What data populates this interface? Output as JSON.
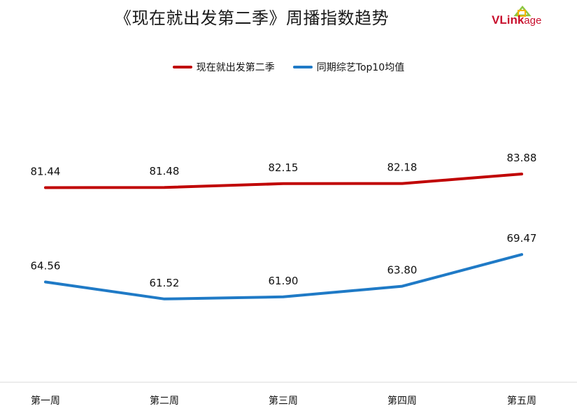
{
  "header": {
    "title": "《现在就出发第二季》周播指数趋势",
    "logo_text_main": "VLink",
    "logo_text_small": "age"
  },
  "colors": {
    "series_1": "#c00000",
    "series_2": "#1f7ac6",
    "axis": "#d9d9d9",
    "logo": "#c8102e"
  },
  "chart_data": {
    "type": "line",
    "title": "《现在就出发第二季》周播指数趋势",
    "categories": [
      "第一周",
      "第二周",
      "第三周",
      "第四周",
      "第五周"
    ],
    "series": [
      {
        "name": "现在就出发第二季",
        "values": [
          81.44,
          81.48,
          82.15,
          82.18,
          83.88
        ]
      },
      {
        "name": "同期综艺Top10均值",
        "values": [
          64.56,
          61.52,
          61.9,
          63.8,
          69.47
        ]
      }
    ],
    "value_labels": [
      [
        "81.44",
        "81.48",
        "82.15",
        "82.18",
        "83.88"
      ],
      [
        "64.56",
        "61.52",
        "61.90",
        "63.80",
        "69.47"
      ]
    ],
    "ylim": [
      50,
      100
    ],
    "grid": false,
    "legend_position": "top"
  }
}
